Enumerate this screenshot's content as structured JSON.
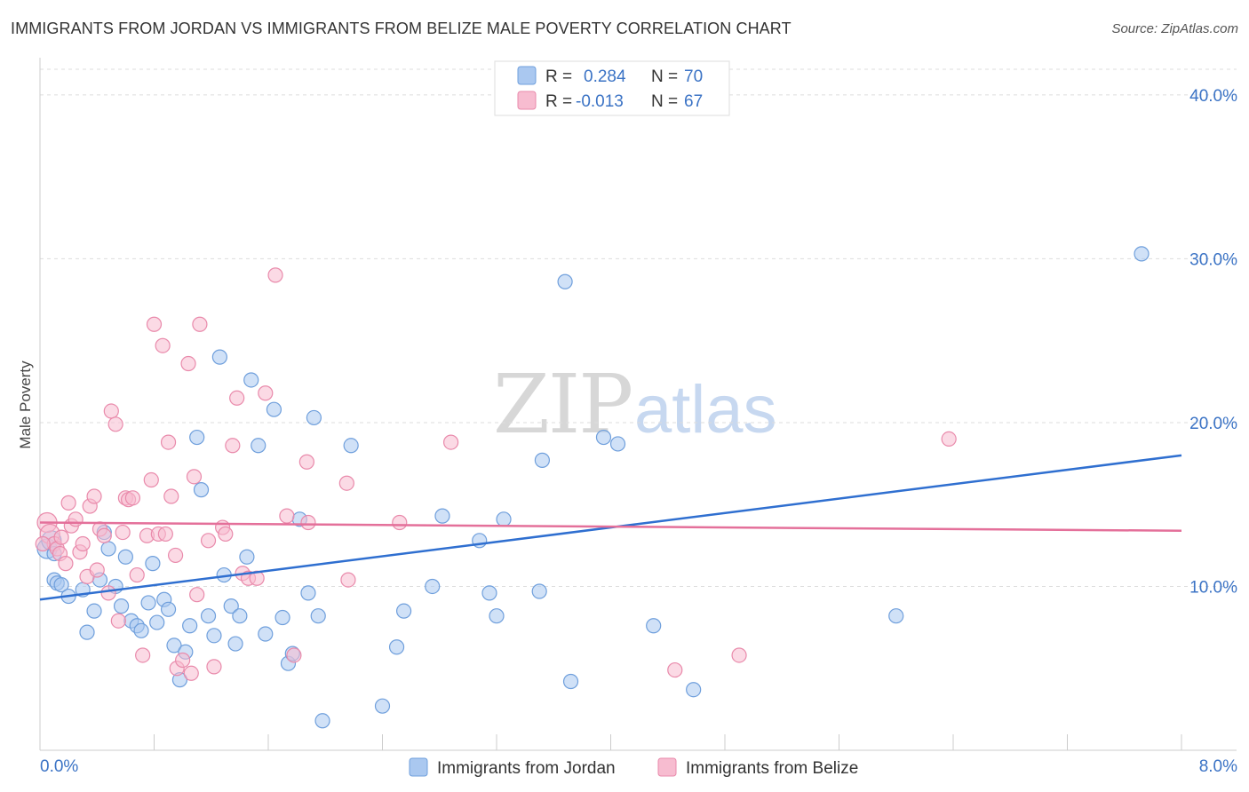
{
  "header": {
    "title": "IMMIGRANTS FROM JORDAN VS IMMIGRANTS FROM BELIZE MALE POVERTY CORRELATION CHART",
    "source": "Source: ZipAtlas.com"
  },
  "watermark": {
    "zip": "ZIP",
    "atlas": "atlas"
  },
  "colors": {
    "jordan_fill": "#aac8f0",
    "jordan_stroke": "#6f9fdc",
    "jordan_line": "#2f6fd0",
    "belize_fill": "#f7bcd0",
    "belize_stroke": "#e98aab",
    "belize_line": "#e4709a",
    "value_text": "#3b73c5",
    "grid": "#dddddd"
  },
  "legend": {
    "r_label": "R =",
    "n_label": "N =",
    "rows": [
      {
        "series": "jordan",
        "r": "0.284",
        "n": "70"
      },
      {
        "series": "belize",
        "r": "-0.013",
        "n": "67"
      }
    ]
  },
  "chart_data": {
    "type": "scatter",
    "title": "IMMIGRANTS FROM JORDAN VS IMMIGRANTS FROM BELIZE MALE POVERTY CORRELATION CHART",
    "xlabel": "",
    "ylabel": "Male Poverty",
    "xlim": [
      0,
      8
    ],
    "ylim": [
      0,
      42
    ],
    "x_tick_labels": [
      "0.0%",
      "8.0%"
    ],
    "y_tick_labels": [
      "10.0%",
      "20.0%",
      "30.0%",
      "40.0%"
    ],
    "y_ticks": [
      10,
      20,
      30,
      40
    ],
    "series": [
      {
        "name": "Immigrants from Jordan",
        "key": "jordan",
        "trend": {
          "x": [
            0,
            8
          ],
          "y": [
            9.2,
            18.0
          ]
        },
        "points": [
          [
            0.05,
            12.3
          ],
          [
            0.08,
            12.8
          ],
          [
            0.1,
            12.0
          ],
          [
            0.1,
            10.4
          ],
          [
            0.12,
            10.2
          ],
          [
            0.15,
            10.1
          ],
          [
            0.2,
            9.4
          ],
          [
            0.3,
            9.8
          ],
          [
            0.33,
            7.2
          ],
          [
            0.38,
            8.5
          ],
          [
            0.42,
            10.4
          ],
          [
            0.45,
            13.3
          ],
          [
            0.48,
            12.3
          ],
          [
            0.53,
            10.0
          ],
          [
            0.57,
            8.8
          ],
          [
            0.6,
            11.8
          ],
          [
            0.64,
            7.9
          ],
          [
            0.68,
            7.6
          ],
          [
            0.71,
            7.3
          ],
          [
            0.76,
            9.0
          ],
          [
            0.79,
            11.4
          ],
          [
            0.82,
            7.8
          ],
          [
            0.87,
            9.2
          ],
          [
            0.9,
            8.6
          ],
          [
            0.94,
            6.4
          ],
          [
            0.98,
            4.3
          ],
          [
            1.02,
            6.0
          ],
          [
            1.05,
            7.6
          ],
          [
            1.1,
            19.1
          ],
          [
            1.13,
            15.9
          ],
          [
            1.18,
            8.2
          ],
          [
            1.22,
            7.0
          ],
          [
            1.26,
            24.0
          ],
          [
            1.29,
            10.7
          ],
          [
            1.34,
            8.8
          ],
          [
            1.37,
            6.5
          ],
          [
            1.4,
            8.2
          ],
          [
            1.45,
            11.8
          ],
          [
            1.48,
            22.6
          ],
          [
            1.53,
            18.6
          ],
          [
            1.58,
            7.1
          ],
          [
            1.64,
            20.8
          ],
          [
            1.7,
            8.1
          ],
          [
            1.74,
            5.3
          ],
          [
            1.77,
            5.9
          ],
          [
            1.82,
            14.1
          ],
          [
            1.88,
            9.6
          ],
          [
            1.92,
            20.3
          ],
          [
            1.95,
            8.2
          ],
          [
            1.98,
            1.8
          ],
          [
            2.18,
            18.6
          ],
          [
            2.4,
            2.7
          ],
          [
            2.5,
            6.3
          ],
          [
            2.55,
            8.5
          ],
          [
            2.75,
            10.0
          ],
          [
            2.82,
            14.3
          ],
          [
            3.08,
            12.8
          ],
          [
            3.15,
            9.6
          ],
          [
            3.2,
            8.2
          ],
          [
            3.25,
            14.1
          ],
          [
            3.5,
            9.7
          ],
          [
            3.52,
            17.7
          ],
          [
            3.68,
            28.6
          ],
          [
            3.72,
            4.2
          ],
          [
            3.95,
            19.1
          ],
          [
            4.05,
            18.7
          ],
          [
            4.3,
            7.6
          ],
          [
            4.58,
            3.7
          ],
          [
            6.0,
            8.2
          ],
          [
            7.72,
            30.3
          ]
        ]
      },
      {
        "name": "Immigrants from Belize",
        "key": "belize",
        "trend": {
          "x": [
            0,
            8
          ],
          "y": [
            13.9,
            13.4
          ]
        },
        "points": [
          [
            0.05,
            13.9
          ],
          [
            0.07,
            13.2
          ],
          [
            0.1,
            12.6
          ],
          [
            0.12,
            12.3
          ],
          [
            0.14,
            12.0
          ],
          [
            0.18,
            11.4
          ],
          [
            0.2,
            15.1
          ],
          [
            0.22,
            13.7
          ],
          [
            0.25,
            14.1
          ],
          [
            0.28,
            12.1
          ],
          [
            0.3,
            12.6
          ],
          [
            0.33,
            10.6
          ],
          [
            0.35,
            14.9
          ],
          [
            0.38,
            15.5
          ],
          [
            0.4,
            11.0
          ],
          [
            0.42,
            13.5
          ],
          [
            0.45,
            13.1
          ],
          [
            0.48,
            9.6
          ],
          [
            0.5,
            20.7
          ],
          [
            0.53,
            19.9
          ],
          [
            0.55,
            7.9
          ],
          [
            0.58,
            13.3
          ],
          [
            0.6,
            15.4
          ],
          [
            0.62,
            15.3
          ],
          [
            0.65,
            15.4
          ],
          [
            0.68,
            10.7
          ],
          [
            0.72,
            5.8
          ],
          [
            0.75,
            13.1
          ],
          [
            0.78,
            16.5
          ],
          [
            0.8,
            26.0
          ],
          [
            0.83,
            13.2
          ],
          [
            0.86,
            24.7
          ],
          [
            0.88,
            13.2
          ],
          [
            0.9,
            18.8
          ],
          [
            0.92,
            15.5
          ],
          [
            0.95,
            11.9
          ],
          [
            0.96,
            5.0
          ],
          [
            1.0,
            5.5
          ],
          [
            1.04,
            23.6
          ],
          [
            1.06,
            4.7
          ],
          [
            1.08,
            16.7
          ],
          [
            1.1,
            9.5
          ],
          [
            1.12,
            26.0
          ],
          [
            1.18,
            12.8
          ],
          [
            1.22,
            5.1
          ],
          [
            1.28,
            13.6
          ],
          [
            1.3,
            13.2
          ],
          [
            1.35,
            18.6
          ],
          [
            1.38,
            21.5
          ],
          [
            1.42,
            10.8
          ],
          [
            1.46,
            10.5
          ],
          [
            1.52,
            10.5
          ],
          [
            1.58,
            21.8
          ],
          [
            1.65,
            29.0
          ],
          [
            1.73,
            14.3
          ],
          [
            1.78,
            5.8
          ],
          [
            1.87,
            17.6
          ],
          [
            1.88,
            13.9
          ],
          [
            2.15,
            16.3
          ],
          [
            2.16,
            10.4
          ],
          [
            2.52,
            13.9
          ],
          [
            2.88,
            18.8
          ],
          [
            4.45,
            4.9
          ],
          [
            4.9,
            5.8
          ],
          [
            6.37,
            19.0
          ],
          [
            0.15,
            13.0
          ],
          [
            0.02,
            12.6
          ]
        ]
      }
    ],
    "legend_position": "top-center"
  },
  "bottom_legend": [
    {
      "key": "jordan",
      "label": "Immigrants from Jordan"
    },
    {
      "key": "belize",
      "label": "Immigrants from Belize"
    }
  ]
}
